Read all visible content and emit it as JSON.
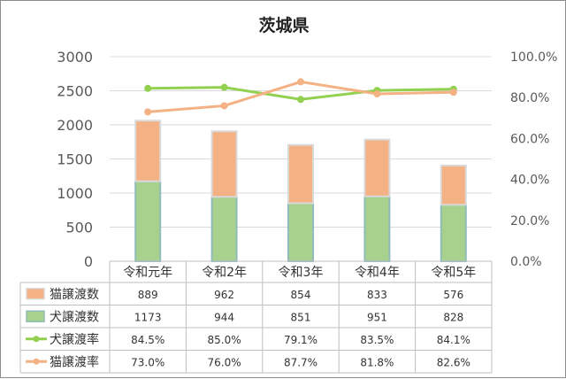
{
  "chart_data": {
    "type": "bar",
    "title": "茨城県",
    "categories": [
      "令和元年",
      "令和2年",
      "令和3年",
      "令和4年",
      "令和5年"
    ],
    "bar_series": [
      {
        "name": "犬譲渡数",
        "values": [
          1173,
          944,
          851,
          951,
          828
        ],
        "color": "#a9d18e",
        "edge": "#8fbcb8"
      },
      {
        "name": "猫譲渡数",
        "values": [
          889,
          962,
          854,
          833,
          576
        ],
        "color": "#f4b183",
        "edge": "#d9d9d9"
      }
    ],
    "line_series": [
      {
        "name": "犬譲渡率",
        "values": [
          84.5,
          85.0,
          79.1,
          83.5,
          84.1
        ],
        "color": "#92d050"
      },
      {
        "name": "猫譲渡率",
        "values": [
          73.0,
          76.0,
          87.7,
          81.8,
          82.6
        ],
        "color": "#f4b183"
      }
    ],
    "ylim": [
      0,
      3000
    ],
    "yticks": [
      "0",
      "500",
      "1000",
      "1500",
      "2000",
      "2500",
      "3000"
    ],
    "y2lim": [
      0,
      100
    ],
    "y2ticks": [
      "0.0%",
      "20.0%",
      "40.0%",
      "60.0%",
      "80.0%",
      "100.0%"
    ],
    "table": {
      "rows": [
        {
          "label": "猫譲渡数",
          "cells": [
            "889",
            "962",
            "854",
            "833",
            "576"
          ],
          "marker": "box",
          "color": "#f4b183"
        },
        {
          "label": "犬譲渡数",
          "cells": [
            "1173",
            "944",
            "851",
            "951",
            "828"
          ],
          "marker": "box",
          "color": "#a9d18e"
        },
        {
          "label": "犬譲渡率",
          "cells": [
            "84.5%",
            "85.0%",
            "79.1%",
            "83.5%",
            "84.1%"
          ],
          "marker": "line",
          "color": "#92d050"
        },
        {
          "label": "猫譲渡率",
          "cells": [
            "73.0%",
            "76.0%",
            "87.7%",
            "81.8%",
            "82.6%"
          ],
          "marker": "line",
          "color": "#f4b183"
        }
      ]
    },
    "grid": true
  }
}
